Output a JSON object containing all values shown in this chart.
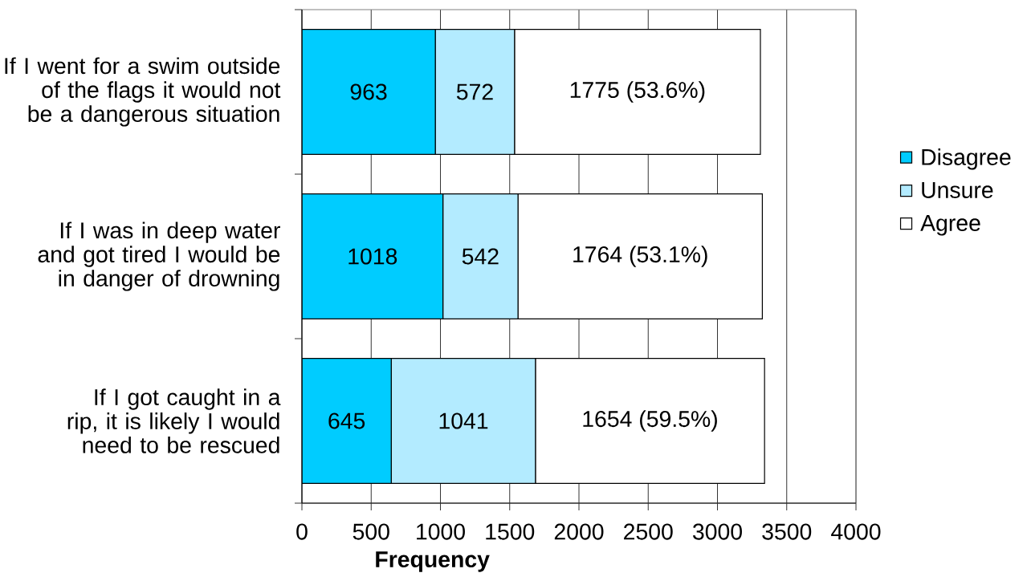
{
  "chart_data": {
    "type": "bar",
    "orientation": "horizontal",
    "stacked": true,
    "categories": [
      "If I went for a swim outside of the flags it would not be a dangerous situation",
      "If I was in deep water and got tired I would be in danger of drowning",
      "If I got caught in a rip, it is likely I would need to be rescued"
    ],
    "series": [
      {
        "name": "Disagree",
        "color": "#00ccff",
        "values": [
          963,
          1018,
          645
        ],
        "value_labels": [
          "963",
          "1018",
          "645"
        ]
      },
      {
        "name": "Unsure",
        "color": "#b3ebff",
        "values": [
          572,
          542,
          1041
        ],
        "value_labels": [
          "572",
          "542",
          "1041"
        ]
      },
      {
        "name": "Agree",
        "color": "#ffffff",
        "values": [
          1775,
          1764,
          1654
        ],
        "value_labels": [
          "1775 (53.6%)",
          "1764 (53.1%)",
          "1654 (59.5%)"
        ]
      }
    ],
    "xlabel": "Frequency",
    "xlim": [
      0,
      4000
    ],
    "xticks": [
      0,
      500,
      1000,
      1500,
      2000,
      2500,
      3000,
      3500,
      4000
    ],
    "grid": "x",
    "legend": "right"
  }
}
